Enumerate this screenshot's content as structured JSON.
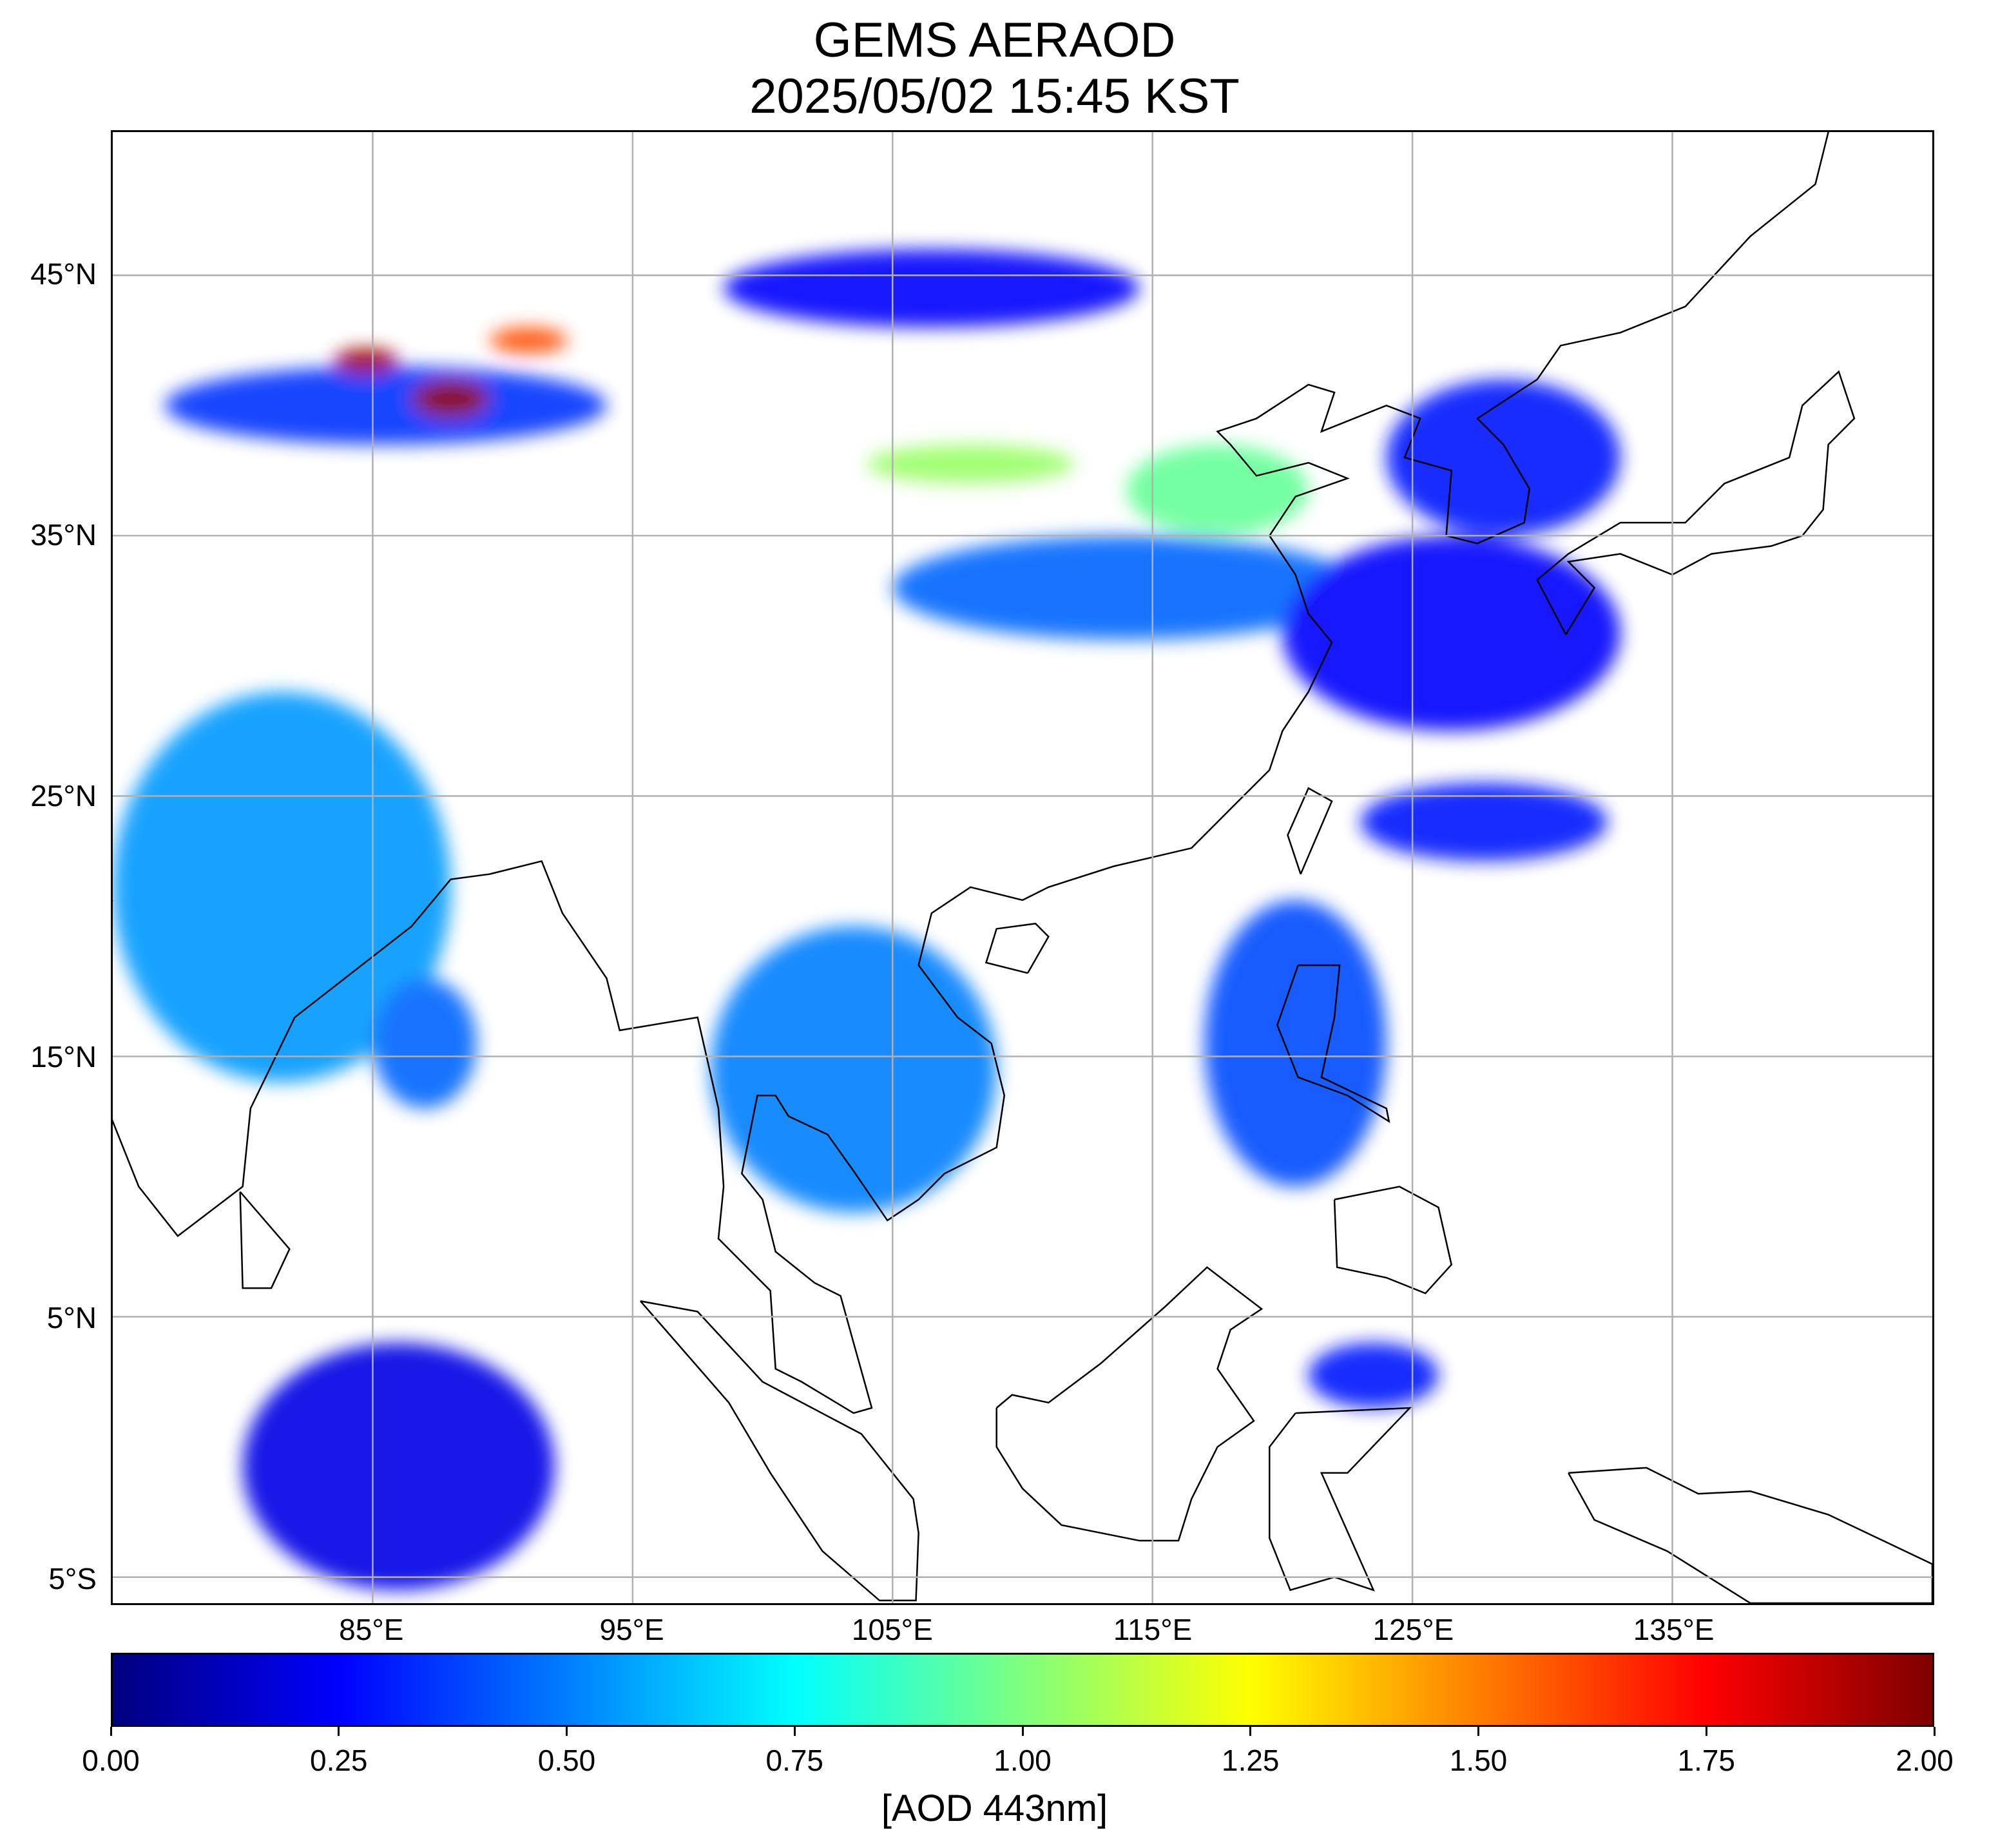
{
  "title": {
    "line1": "GEMS AERAOD",
    "line2": "2025/05/02 15:45 KST"
  },
  "map": {
    "extent": {
      "lon_min": 75,
      "lon_max": 145,
      "lat_min": -6,
      "lat_max": 50.5
    },
    "gridlines": true,
    "lat_ticks": [
      {
        "value": 45,
        "label": "45°N"
      },
      {
        "value": 35,
        "label": "35°N"
      },
      {
        "value": 25,
        "label": "25°N"
      },
      {
        "value": 15,
        "label": "15°N"
      },
      {
        "value": 5,
        "label": "5°N"
      },
      {
        "value": -5,
        "label": "5°S"
      }
    ],
    "lon_ticks": [
      {
        "value": 85,
        "label": "85°E"
      },
      {
        "value": 95,
        "label": "95°E"
      },
      {
        "value": 105,
        "label": "105°E"
      },
      {
        "value": 115,
        "label": "115°E"
      },
      {
        "value": 125,
        "label": "125°E"
      },
      {
        "value": 135,
        "label": "135°E"
      }
    ],
    "aerosol_regions": [
      {
        "name": "taklamakan-basin",
        "lon": [
          77,
          94
        ],
        "lat": [
          38.5,
          41.5
        ],
        "aod": 0.35
      },
      {
        "name": "taklamakan-hotspot-west",
        "lon": [
          83.5,
          86
        ],
        "lat": [
          41.2,
          42.2
        ],
        "aod": 1.95
      },
      {
        "name": "taklamakan-hotspot-center",
        "lon": [
          86.5,
          89.5
        ],
        "lat": [
          39.5,
          41
        ],
        "aod": 2.0
      },
      {
        "name": "taklamakan-hotspot-east",
        "lon": [
          89.5,
          92.5
        ],
        "lat": [
          42,
          43
        ],
        "aod": 1.6
      },
      {
        "name": "mongolia-band",
        "lon": [
          98.5,
          114.5
        ],
        "lat": [
          43,
          46
        ],
        "aod": 0.25
      },
      {
        "name": "ordos-plume",
        "lon": [
          104,
          112
        ],
        "lat": [
          37,
          38.5
        ],
        "aod": 1.05
      },
      {
        "name": "north-china-plain",
        "lon": [
          114,
          121
        ],
        "lat": [
          35,
          38.5
        ],
        "aod": 0.95
      },
      {
        "name": "central-china-band",
        "lon": [
          105,
          123
        ],
        "lat": [
          31,
          35
        ],
        "aod": 0.45
      },
      {
        "name": "east-china-sea",
        "lon": [
          120,
          133
        ],
        "lat": [
          27.5,
          35
        ],
        "aod": 0.25
      },
      {
        "name": "korea-japan-sea",
        "lon": [
          124,
          133
        ],
        "lat": [
          35,
          41
        ],
        "aod": 0.3
      },
      {
        "name": "philippine-sea-band",
        "lon": [
          123,
          132.5
        ],
        "lat": [
          22.5,
          25.5
        ],
        "aod": 0.3
      },
      {
        "name": "indo-gangetic-plain",
        "lon": [
          75,
          88
        ],
        "lat": [
          14,
          29
        ],
        "aod": 0.55
      },
      {
        "name": "bay-of-bengal",
        "lon": [
          85,
          89
        ],
        "lat": [
          13,
          18
        ],
        "aod": 0.45
      },
      {
        "name": "indochina",
        "lon": [
          98,
          109
        ],
        "lat": [
          9,
          20
        ],
        "aod": 0.5
      },
      {
        "name": "south-china-sea-philippines",
        "lon": [
          117,
          124
        ],
        "lat": [
          10,
          21
        ],
        "aod": 0.4
      },
      {
        "name": "sulawesi",
        "lon": [
          121,
          126
        ],
        "lat": [
          1.5,
          4
        ],
        "aod": 0.3
      },
      {
        "name": "indian-ocean",
        "lon": [
          80,
          92
        ],
        "lat": [
          -5.5,
          4
        ],
        "aod": 0.2
      }
    ]
  },
  "colorbar": {
    "min": 0.0,
    "max": 2.0,
    "ticks": [
      "0.00",
      "0.25",
      "0.50",
      "0.75",
      "1.00",
      "1.25",
      "1.50",
      "1.75",
      "2.00"
    ],
    "stops": [
      "#00007f",
      "#0000ff",
      "#007fff",
      "#00ffff",
      "#7fff7f",
      "#ffff00",
      "#ff7f00",
      "#ff0000",
      "#7f0000"
    ],
    "label": "[AOD 443nm]"
  }
}
